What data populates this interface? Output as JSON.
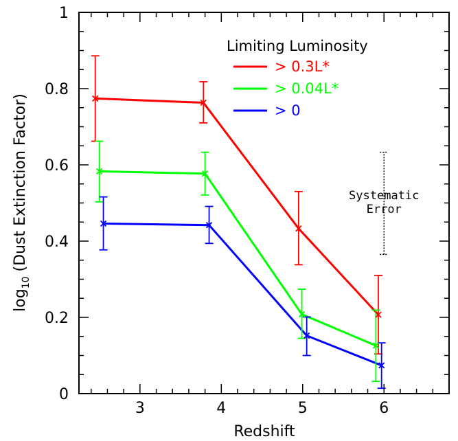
{
  "chart_data": {
    "type": "line",
    "xlabel": "Redshift",
    "ylabel_main": "log",
    "ylabel_sub": "10",
    "ylabel_rest": " (Dust Extinction Factor)",
    "xlim": [
      2.25,
      6.8
    ],
    "ylim": [
      0,
      1
    ],
    "x_ticks": [
      "3",
      "4",
      "5",
      "6"
    ],
    "y_ticks": [
      "0",
      "0.2",
      "0.4",
      "0.6",
      "0.8",
      "1"
    ],
    "legend_title": "Limiting Luminosity",
    "series": [
      {
        "name": "> 0.3L*",
        "color": "#ff0000",
        "x": [
          2.45,
          3.78,
          4.95,
          5.93
        ],
        "y": [
          0.774,
          0.763,
          0.433,
          0.207
        ],
        "err_low": [
          0.662,
          0.71,
          0.338,
          0.104
        ],
        "err_high": [
          0.886,
          0.818,
          0.53,
          0.31
        ]
      },
      {
        "name": "> 0.04L*",
        "color": "#00ff00",
        "x": [
          2.5,
          3.8,
          4.99,
          5.9
        ],
        "y": [
          0.583,
          0.577,
          0.208,
          0.126
        ],
        "err_low": [
          0.503,
          0.521,
          0.145,
          0.032
        ],
        "err_high": [
          0.662,
          0.633,
          0.274,
          0.219
        ]
      },
      {
        "name": "> 0",
        "color": "#0000ff",
        "x": [
          2.55,
          3.85,
          5.05,
          5.97
        ],
        "y": [
          0.446,
          0.442,
          0.152,
          0.074
        ],
        "err_low": [
          0.377,
          0.394,
          0.1,
          0.014
        ],
        "err_high": [
          0.516,
          0.491,
          0.201,
          0.133
        ]
      }
    ],
    "annotation": {
      "lines": [
        "Systematic",
        "Error"
      ],
      "x": 6.0,
      "err_low": 0.365,
      "err_high": 0.633
    }
  }
}
